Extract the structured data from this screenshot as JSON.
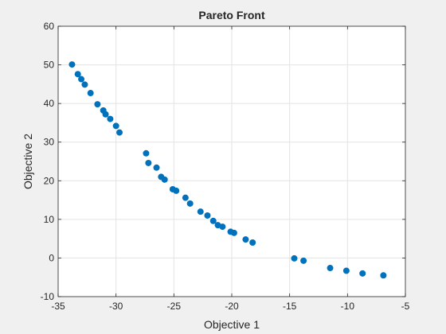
{
  "chart_data": {
    "type": "scatter",
    "title": "Pareto Front",
    "xlabel": "Objective 1",
    "ylabel": "Objective 2",
    "xlim": [
      -35,
      -5
    ],
    "ylim": [
      -10,
      60
    ],
    "xticks": [
      -35,
      -30,
      -25,
      -20,
      -15,
      -10,
      -5
    ],
    "yticks": [
      -10,
      0,
      10,
      20,
      30,
      40,
      50,
      60
    ],
    "grid": true,
    "marker_color": "#0072bd",
    "series": [
      {
        "points": [
          {
            "x": -33.8,
            "y": 50.1
          },
          {
            "x": -33.3,
            "y": 47.6
          },
          {
            "x": -33.0,
            "y": 46.3
          },
          {
            "x": -32.7,
            "y": 44.9
          },
          {
            "x": -32.2,
            "y": 42.7
          },
          {
            "x": -31.6,
            "y": 39.8
          },
          {
            "x": -31.1,
            "y": 38.2
          },
          {
            "x": -30.9,
            "y": 37.2
          },
          {
            "x": -30.5,
            "y": 36.0
          },
          {
            "x": -30.0,
            "y": 34.2
          },
          {
            "x": -29.7,
            "y": 32.5
          },
          {
            "x": -27.4,
            "y": 27.1
          },
          {
            "x": -27.2,
            "y": 24.6
          },
          {
            "x": -26.5,
            "y": 23.4
          },
          {
            "x": -26.1,
            "y": 21.0
          },
          {
            "x": -25.8,
            "y": 20.3
          },
          {
            "x": -25.1,
            "y": 17.8
          },
          {
            "x": -24.8,
            "y": 17.4
          },
          {
            "x": -24.0,
            "y": 15.6
          },
          {
            "x": -23.6,
            "y": 14.1
          },
          {
            "x": -22.7,
            "y": 12.0
          },
          {
            "x": -22.1,
            "y": 11.0
          },
          {
            "x": -21.6,
            "y": 9.6
          },
          {
            "x": -21.2,
            "y": 8.5
          },
          {
            "x": -20.8,
            "y": 8.1
          },
          {
            "x": -20.1,
            "y": 6.8
          },
          {
            "x": -19.8,
            "y": 6.5
          },
          {
            "x": -18.8,
            "y": 4.8
          },
          {
            "x": -18.2,
            "y": 4.0
          },
          {
            "x": -14.6,
            "y": -0.1
          },
          {
            "x": -13.8,
            "y": -0.7
          },
          {
            "x": -11.5,
            "y": -2.6
          },
          {
            "x": -10.1,
            "y": -3.3
          },
          {
            "x": -8.7,
            "y": -4.0
          },
          {
            "x": -6.9,
            "y": -4.5
          }
        ]
      }
    ]
  }
}
